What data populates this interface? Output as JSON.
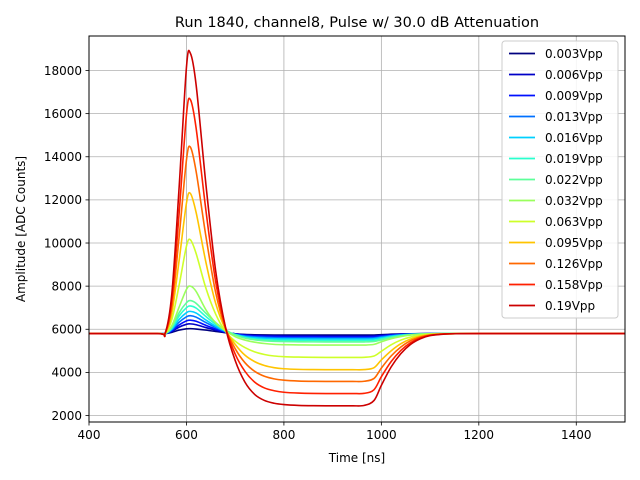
{
  "chart_data": {
    "type": "line",
    "title": "Run 1840, channel8, Pulse w/ 30.0 dB Attenuation",
    "xlabel": "Time [ns]",
    "ylabel": "Amplitude [ADC Counts]",
    "xlim": [
      400,
      1500
    ],
    "ylim": [
      1700,
      19600
    ],
    "xticks": [
      400,
      600,
      800,
      1000,
      1200,
      1400
    ],
    "yticks": [
      2000,
      4000,
      6000,
      8000,
      10000,
      12000,
      14000,
      16000,
      18000
    ],
    "grid": true,
    "legend_position": "top-right",
    "baseline": 5800,
    "x": [
      400,
      540,
      556,
      570,
      585,
      600,
      608,
      620,
      640,
      660,
      680,
      700,
      720,
      740,
      760,
      780,
      800,
      830,
      860,
      900,
      940,
      965,
      985,
      1000,
      1020,
      1040,
      1060,
      1080,
      1100,
      1130,
      1160,
      1200,
      1250,
      1300,
      1400,
      1500
    ],
    "series": [
      {
        "name": "0.003Vpp",
        "color": "#00007f",
        "values": [
          5800,
          5800,
          5800,
          5860,
          5960,
          6020,
          6030,
          6010,
          5960,
          5900,
          5840,
          5790,
          5760,
          5745,
          5738,
          5735,
          5733,
          5730,
          5730,
          5730,
          5730,
          5730,
          5735,
          5750,
          5770,
          5785,
          5793,
          5797,
          5799,
          5800,
          5800,
          5800,
          5800,
          5800,
          5800,
          5800
        ]
      },
      {
        "name": "0.006Vpp",
        "color": "#0000c8",
        "values": [
          5800,
          5800,
          5800,
          5900,
          6100,
          6230,
          6250,
          6210,
          6080,
          5960,
          5860,
          5790,
          5740,
          5715,
          5700,
          5692,
          5688,
          5685,
          5683,
          5682,
          5682,
          5682,
          5690,
          5715,
          5745,
          5770,
          5786,
          5794,
          5798,
          5800,
          5800,
          5800,
          5800,
          5800,
          5800,
          5800
        ]
      },
      {
        "name": "0.009Vpp",
        "color": "#0010ff",
        "values": [
          5800,
          5800,
          5800,
          5930,
          6200,
          6390,
          6420,
          6370,
          6180,
          6010,
          5870,
          5780,
          5720,
          5690,
          5670,
          5660,
          5655,
          5650,
          5648,
          5646,
          5646,
          5646,
          5655,
          5690,
          5730,
          5760,
          5780,
          5792,
          5797,
          5800,
          5800,
          5800,
          5800,
          5800,
          5800,
          5800
        ]
      },
      {
        "name": "0.013Vpp",
        "color": "#0070ff",
        "values": [
          5800,
          5800,
          5800,
          5970,
          6330,
          6580,
          6630,
          6560,
          6310,
          6080,
          5890,
          5770,
          5690,
          5650,
          5625,
          5612,
          5605,
          5600,
          5597,
          5595,
          5595,
          5595,
          5605,
          5650,
          5705,
          5745,
          5772,
          5788,
          5796,
          5800,
          5800,
          5800,
          5800,
          5800,
          5800,
          5800
        ]
      },
      {
        "name": "0.016Vpp",
        "color": "#00d0ff",
        "values": [
          5800,
          5800,
          5800,
          6010,
          6460,
          6770,
          6830,
          6750,
          6430,
          6140,
          5910,
          5760,
          5660,
          5610,
          5580,
          5564,
          5555,
          5550,
          5547,
          5545,
          5545,
          5545,
          5560,
          5610,
          5680,
          5730,
          5764,
          5784,
          5794,
          5800,
          5800,
          5800,
          5800,
          5800,
          5800,
          5800
        ]
      },
      {
        "name": "0.019Vpp",
        "color": "#29ffce",
        "values": [
          5800,
          5800,
          5800,
          6060,
          6620,
          7000,
          7080,
          6980,
          6590,
          6230,
          5940,
          5750,
          5620,
          5555,
          5520,
          5500,
          5490,
          5483,
          5480,
          5478,
          5478,
          5478,
          5495,
          5560,
          5645,
          5710,
          5754,
          5779,
          5793,
          5800,
          5800,
          5800,
          5800,
          5800,
          5800,
          5800
        ]
      },
      {
        "name": "0.022Vpp",
        "color": "#5dff9a",
        "values": [
          5800,
          5800,
          5800,
          6100,
          6770,
          7230,
          7330,
          7200,
          6740,
          6310,
          5970,
          5740,
          5590,
          5510,
          5465,
          5440,
          5428,
          5420,
          5416,
          5414,
          5414,
          5414,
          5435,
          5510,
          5615,
          5690,
          5745,
          5775,
          5792,
          5800,
          5800,
          5800,
          5800,
          5800,
          5800,
          5800
        ]
      },
      {
        "name": "0.032Vpp",
        "color": "#9aff5d",
        "values": [
          5800,
          5800,
          5800,
          6170,
          7030,
          7850,
          8000,
          7750,
          6900,
          6300,
          5930,
          5660,
          5500,
          5400,
          5340,
          5300,
          5285,
          5275,
          5270,
          5268,
          5268,
          5268,
          5300,
          5420,
          5560,
          5660,
          5730,
          5770,
          5790,
          5800,
          5800,
          5800,
          5800,
          5800,
          5800,
          5800
        ]
      },
      {
        "name": "0.063Vpp",
        "color": "#ceff29",
        "values": [
          5800,
          5800,
          5800,
          6450,
          8050,
          9850,
          10150,
          9500,
          7900,
          6700,
          5900,
          5450,
          5150,
          4950,
          4830,
          4760,
          4730,
          4710,
          4700,
          4695,
          4695,
          4700,
          4760,
          4980,
          5280,
          5500,
          5640,
          5720,
          5765,
          5790,
          5798,
          5800,
          5800,
          5800,
          5800,
          5800
        ]
      },
      {
        "name": "0.095Vpp",
        "color": "#ffc400",
        "values": [
          5800,
          5800,
          5800,
          6750,
          9200,
          11850,
          12300,
          11400,
          9100,
          7200,
          6000,
          5300,
          4800,
          4500,
          4320,
          4220,
          4170,
          4140,
          4130,
          4125,
          4125,
          4130,
          4220,
          4580,
          5000,
          5330,
          5550,
          5680,
          5750,
          5788,
          5797,
          5800,
          5800,
          5800,
          5800,
          5800
        ]
      },
      {
        "name": "0.126Vpp",
        "color": "#ff6800",
        "values": [
          5800,
          5800,
          5800,
          7050,
          10300,
          13850,
          14450,
          13300,
          10300,
          7700,
          6050,
          5100,
          4450,
          4050,
          3820,
          3700,
          3640,
          3600,
          3585,
          3580,
          3580,
          3590,
          3720,
          4200,
          4760,
          5180,
          5470,
          5640,
          5735,
          5785,
          5796,
          5800,
          5800,
          5800,
          5800,
          5800
        ]
      },
      {
        "name": "0.158Vpp",
        "color": "#ff2000",
        "values": [
          5800,
          5800,
          5800,
          7350,
          11400,
          15950,
          16650,
          15300,
          11500,
          8200,
          6100,
          4850,
          4050,
          3550,
          3280,
          3150,
          3080,
          3040,
          3025,
          3020,
          3020,
          3030,
          3200,
          3800,
          4500,
          5020,
          5380,
          5600,
          5720,
          5782,
          5795,
          5800,
          5800,
          5800,
          5800,
          5800
        ]
      },
      {
        "name": "0.19Vpp",
        "color": "#cc0000",
        "values": [
          5800,
          5800,
          5800,
          7650,
          12600,
          18150,
          18800,
          17300,
          12700,
          8700,
          6100,
          4550,
          3550,
          2980,
          2700,
          2570,
          2510,
          2470,
          2455,
          2450,
          2450,
          2470,
          2700,
          3400,
          4250,
          4870,
          5300,
          5560,
          5705,
          5778,
          5794,
          5800,
          5800,
          5800,
          5800,
          5800
        ]
      }
    ]
  }
}
